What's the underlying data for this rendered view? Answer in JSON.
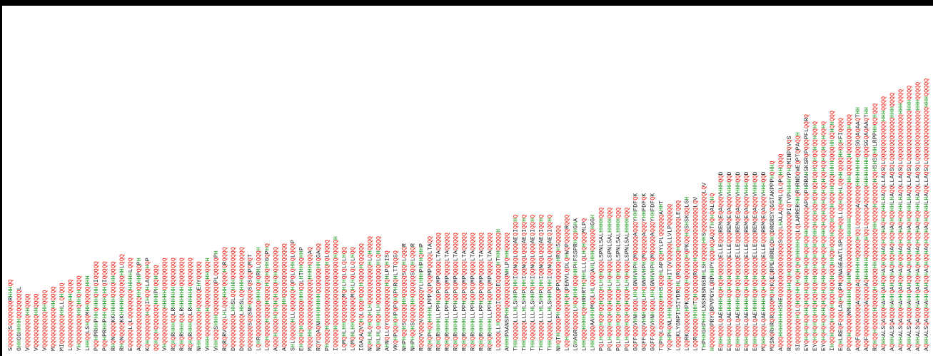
{
  "letter_colors": {
    "Q": "#e8180c",
    "H": "#1f9a1f",
    "default": "#222222"
  },
  "sequences": [
    "SQQQQQSQQQQQQQRHHHQQ",
    "GHHGGHHHHQQQQQQQQL",
    "VQQQQQQQQQHHQQQQ",
    "VQQQQQQQQQHHQQQQ",
    "VQQQQQQQQQQHHQQQQ",
    "MQQQQQQQQQQQHHQQQQ",
    "MIQQQQQQQQHHLLQHQQQ",
    "LQQQQQQQQQQQQQHHQQQQ",
    "YHQQQQQQQQHHQHHQHQQQQ",
    "LHHQQLSHQQMHHQQQQQHHH",
    "PQQHPRHHPHHQHHHQHHQIQQQQQ",
    "PQQHPRHHPHHQHHHQHHQIQQQQQ",
    "RHQNQQQQKKHHHHHQQQQHHQQQQ",
    "RHQNQQQQKKHHHHHQQQQQQHHLQQQ",
    "EQQQQQLQLQQQQQQQQHHHHHLQQQ",
    "AQQQQQQQQQQQQQQHHQQHHPQQPH",
    "KQHQQQQQQQHQQIHQQHLAQQQHQP",
    "QQHQQHQQQQQQQHHHPHQQHQQQ",
    "VHQQQQQQQQQQHHHHHQQQQQQQQQ",
    "RQHQRHHHQQLRHHHHHHQQQQQQQQ",
    "RQHQRHHHQQLRHHHHHHQQQQQQQQ",
    "RQHQRHHHQQLRHHHHHHQQQQQQQQ",
    "NHHQQQQQQQQHQQQQQEHYQQQQQ",
    "VHHHQQQQQQQHQQQQQQQQHHQQQH",
    "VHHQQQSHHHQQQQQQQQQPLQQQQQPH",
    "RQRQRVQQQLHLQQQHHHQQQQHQRQQQQ",
    "DQQQQQQQQQLHHSLQQHHHQQQQQQQQQ",
    "DQQQQQQQQQLHHSLQQHHHQQQQQQQQQ",
    "DQQQQQQSQQSNHQQQQSQSQQPQMQT",
    "LQHRQQQQQQQQQQHHHQQHQRHLQQQQH",
    "LQQHQQQQHQQQQHQQQQHQQHQHHGQPHQ",
    "AQQQHQQQQHQHQHQHQQQHQHQQQQQQQ",
    "AQQQQQQQQQQQQHHQQQQQQQQQQQQQQQ",
    "SHLQQQQQHLLQQQQQQHQPQLQHHQLQQQP",
    "EHQQHQHQQQQQQQHHHQQLHTHHQQHHP",
    "MQQQHHQQQQQQQQQQQQQQHHHHQQQAQ",
    "RQYQQAQNHHHHHHHHQQQQQQQHHQGAQQ",
    "PHQQQQHQQQQQQQQQQQQQQQQQHQLQQQQ",
    "IQQQQQHQQQQQQQQQQQQQQQQQQQHQQQQH",
    "LQMQHLHHQQQQQQQMQHLHQLQLQLHQQ",
    "LQMQHLHHQQQQQQQMQHLHQLQLQLHQQ",
    "IGAQAQVQHQLQQQHQQQHQQQQHQQQQQQ",
    "NQHLHLQHQQHLHQQQQQQQQQQQHLQHQQQQ",
    "NQHLHLQHQQHLHQQQQQQQQQQQHLQHQQQQ",
    "AHNQLLQYQQQQQQQQQQHQHLPQHISQ",
    "VKQHPQQHQHPQPQHQPHRQHLTTQQSQ",
    "NHPHQQHSQQQQQHHQQQQQQSQQHLQQQR",
    "NHPHQQHSQQQQQHHQQQQQQSQQHLQQQR",
    "RQQQVQQQVQQQQQQQQYLHHHPHPHQHHP",
    "RQHQPHQQHHHHLPPPQQPQQMPQQQQLTAQQ",
    "RQHQRHHHHLLPPHQQPQQMPQQQQLTAQQQQQ",
    "RQHQRHHHHLLPPHQQPQQMPQQQQLTAQQQQQ",
    "RQHQRHHHHLLPPHQQPQQMPQQQQLTAQQQQQ",
    "RQHQRHHHHLLPPHQQPQQMPQQQQLTAQQQQQ",
    "RQHQRHHHHLLPPHQQPQQMPQQQQLTAQQQQQ",
    "RQHQRHHHHLLPPHQQPQQMPQQQQLTAQQQQQ",
    "RQHQRHHHHLLPPHQQPQQMPQQQQLTAQQQQQ",
    "LQQQQLLHQQQQQIQQQQEQQQQQHTHHQQQQQH",
    "AHHHPAANSPHHQQQQQQQQQNHLPQHHQQQQQ",
    "THHQQQQQLLLHLSHHPQHHIQQNQQLQQQAEQIQQHQ",
    "THHQQQQQLLLHLSHHPQHHIQQNQQLQQQAEQIQQHQ",
    "THHQQQQQLLLHLSHHPQHHIQQNQQLQQQAEQIQQHQ",
    "THHQQQQQLLLHLSHHPQHHIQQNQQLQQQAEQIQQHQ",
    "THHQQQQQLLLHLSHHPQHHIQQNQQLQQQAEQIQQHQ",
    "NHQTHQQQQPHQQQQQQPPQQQQQQHRQHSQQQQQ",
    "LQQHQQQQQQQQQHQHQPENVLQDLQHWQPQQQQRQQQ",
    "LGHAGRQQQQQLHQQHHHQQQHHPHFSSPRHQQHGHA",
    "LHHQQQHHHHQQHHRHRTHQHHLLLQLHQHQQQMLPQ",
    "LHHQQQQAAHHHMQQLHLQQQQAHLHHHQQQQQQHGGH",
    "PQLHQQQHQQHQQHQQQHLHQHQQQLSPNLSALHHHHQQQ",
    "PQLHQQQHQQHQQHQQQHLHQHQQQLSPNLSALHHHHQQQ",
    "PQLHQQQHQQHQQHQQQHLHQHQQQLSPNLSALHHHHQQQ",
    "PQLHQQQHQQHQQHQQQHLHQHQQQLSPNLSALHHHHQQQ",
    "GQFFQQQVHNHQQQLHHQGNHVHPHQMQQQQQAQQQYHHFDFQK",
    "GQFFQQQVHNHQQQLHHQGNHVHPHQMQQQQQAQQQYHHFDFQK",
    "GQFFQQQVHNHQQQLHHQGNHVHPHQMQQQQQAQQQYHHFDFQK",
    "TQPHQLQQQQQQQQHHHSQQQHLAPQQHYLPLQQQQQQAHHT",
    "YQQHPHQNLHHHQQQQQQQQHITQVQQQQQLLVLPQQQQQQ",
    "LQQQKLYGNPIHSIYDRQHLQRQQQQQQHQQQQQQQQLEQQQ",
    "LQQRKQQQQQQHPKQQQQQHQQQQQQHQPKQQHQSHSKQQLGH",
    "LQQRQQQQQHHHHTQHQQQQQRQQQHQQQQQQQQQQQQQQLQV",
    "THPHHGHPHHHLNSSNSNGSNHLSHQQQQQHHSQQQQQQQQQQQLQV",
    "HQQQQQQPRYQRPVPGYLQRPHHPYQQQHQQAQQTHQHQALQHQ",
    "EQHHQQQLQAEHHHHQQHQQHQQQQQELLEQQQREMQEQAQQQVHHHQQD",
    "EQHHQQQLQAEHHHHQQHQQHQQQQQELLEQQQREMQEQAQQQVHHHQQD",
    "EQHHQQQLQAEHHHHQQHQQHQQQQQELLEQQQREMQEQAQQQVHHHQQD",
    "EQHHQQQLQAEHHHHQQHQQHQQQQQELLEQQQREMQEQAQQQVHHHQQD",
    "EQHHQQQLQAEHHHHQQHQQHQQQQQELLEQQQREMQEQAQQQVHHHQQD",
    "MQHHQQQLQAEHHHHQQHQQHQQQQQELLEQQQREMQEQAQQQVHHHQQD",
    "MQSNQRHRQRQQQQMQHQKQEQRPEHRREQDHQDRGRSYQGGTAKPPPHQHHQ",
    "AQQQHHHHHHHHSHEQQQQQQQQQQQQQQQSQQQLHALAQQHMLQLQPQHHQQQQ",
    "RQQQQQQQQQQQQQQQQHHQQHQQQQQQQQQQQQQQQQPIQTVPHHHHYPHQMINPQVQS",
    "SIQQQQQQQHQLQHQQHHQHQQHQHQHHHHHQQLQLARRERHHQRHRNDQWEQPTQPAQQH",
    "EYQHQHQHQQHHQHQQHQQHHQQHQQHQQHQQHHQQQQQQAPQQPHRRAHSKSRQPQQQPFLQQRQ",
    "EYQHQHQHQQHHQHQQHQQHHQQHQQHQQHQQHHQHQQHQQHQQHQQHQQHQQHQQHQQHQQHQ",
    "EYQHQHQHQQHHQHQQHQQHHQQHQQHQQHQQHHQHQQHQQHQQHQQHQQHQQHQQHQQHQQHQ",
    "IHQQHQQQHQQQHQQQHQQQHQQQHHQQHQQQHQQQHQQQHQQQHHQQQHHHHQQQQHHQQHQHQQQ",
    "EQHLREQFQQQLAQHQQPMQQNAGEAATLSPQQQHQQLLQQHQQHLQQHHQQQQHHQQHFIQQQQ",
    "PQQQHQQQQQNMHHHHHQQHHMQQQQQQQQQQHHHHHQQQQQQQQQQHHQQQQQHQQQQQQQHQQQ",
    "AQQFQQQQQQQQQAQQQQAQHHHHHHQQQQQHQQLQQQQQAQQQQQHHHHHHHHQQQSGQAQAAQTHH",
    "AQQFQQQQQQQQQAQQQQAQHHHHHHQQQQQHQQLQQQQQAQQQQQHHHHHHHHQQQSGQAQAAQTHH",
    "RQHQQHQQQQQHQQQQQHQQQQQHHQQQQQQQQQHHQQQQHQQQQQQHQQHSHSQHHLRPPHHQQHQQQ",
    "AQHHALSQAQQQHAHHQAHQQHAQHQQHAQHQQHAQHQQHHLHAQQLLAQSQLQQQQQQQQQQQHHHQQQQ",
    "AQHHALSQAQQQHAHHQAHQQHAQHQQHAQHQQHAQHQQHHLHAQQLLAQSQLQQQQQQQQQQQQHHHQQQQ",
    "AQHHALSQAQQQHAHHQAHQQHAQHQQHAQHQQHAQHQQHHLHAQQLLAQSQLQQQQQQQQQQQQQHHHQQQQ",
    "AQHHALSQAQQQHAHHQAHQQHAQHQQHAQHQQHAQHQQHHLHAQQLLAQSQLQQQQQQQQQQQQQQHHHQQQQ",
    "AQHHALSQAQQQHAHHQAHQQHAQHQQHAQHQQHAQHQQHHLHAQQLLAQSQLQQQQQQQQQQQQQQHHHQQQQQ",
    "AQHHALSQAQQQHAHHQAHQQHAQHQQHAQHQQHAQHQQHHLHAQQLLAQSQLQQQQQQQQQQQQQQQHHHQQQQQ"
  ]
}
